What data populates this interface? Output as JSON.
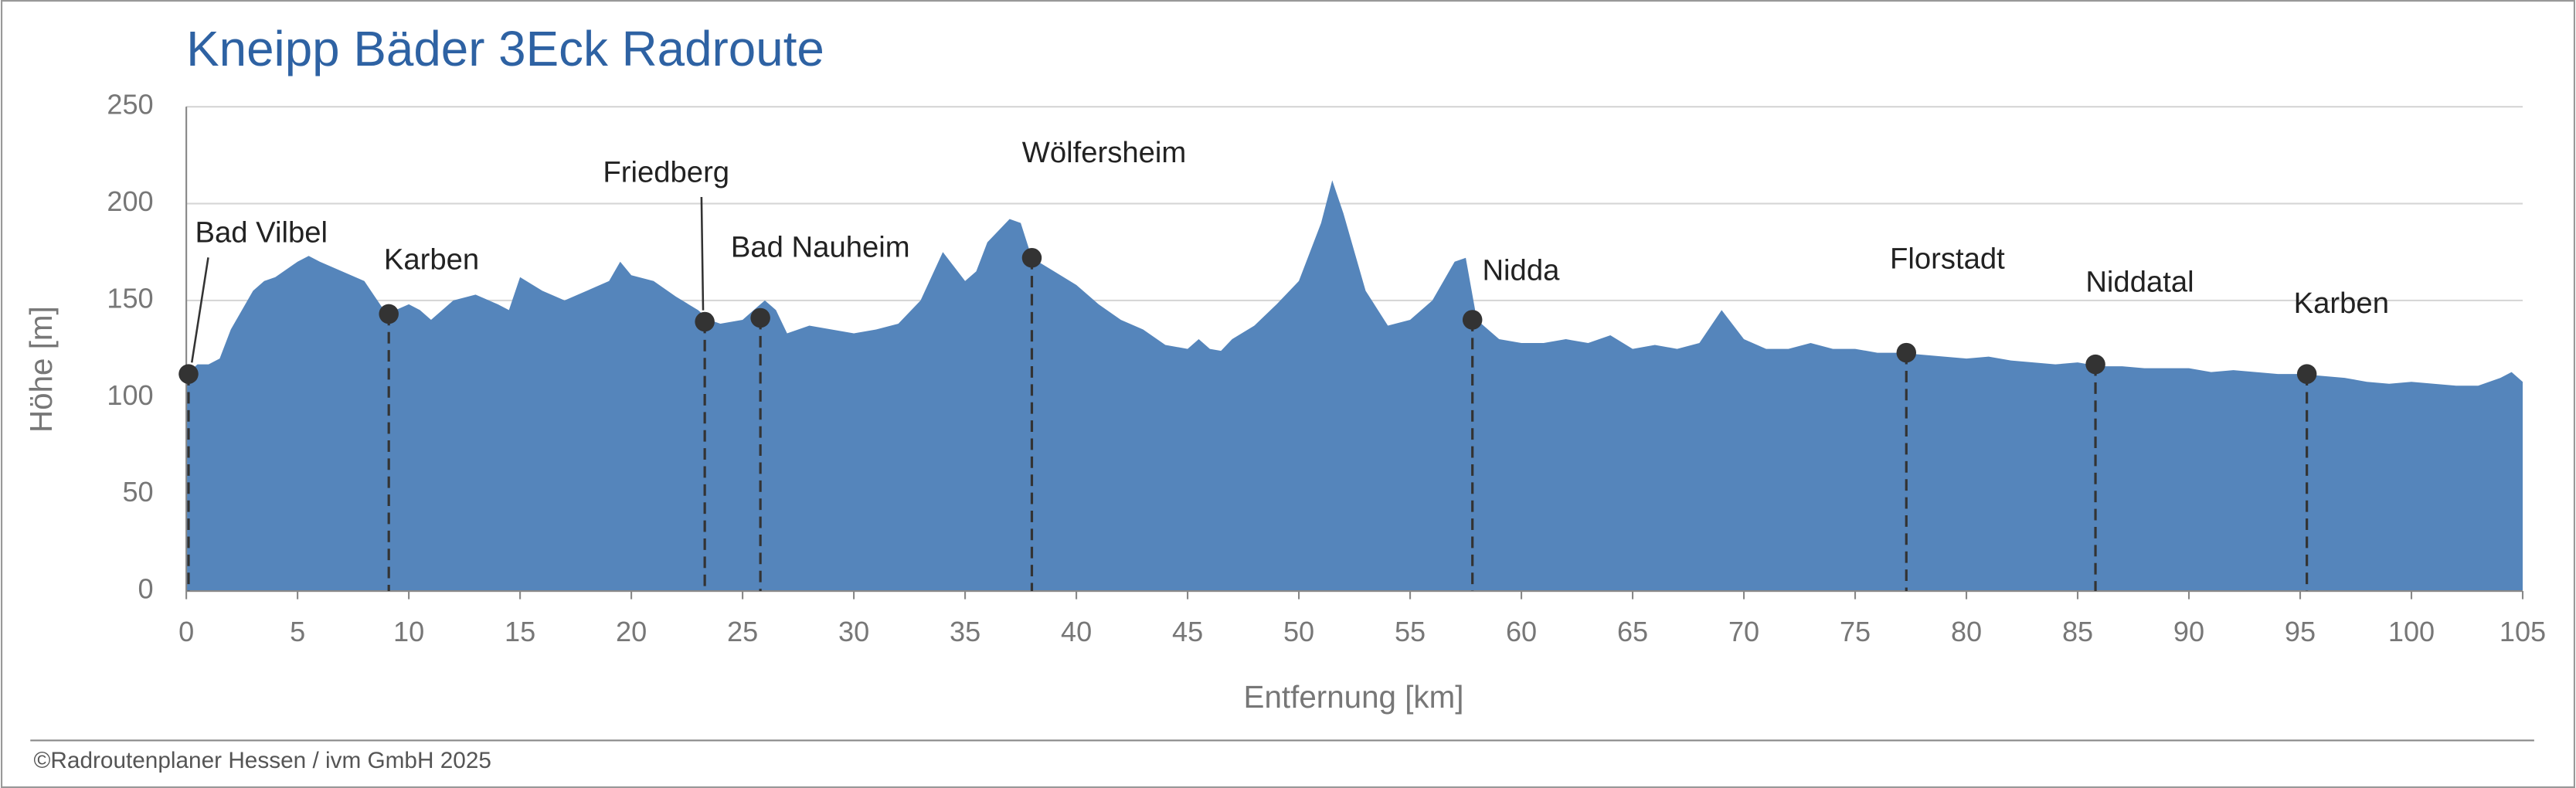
{
  "chart_data": {
    "type": "area",
    "title": "Kneipp Bäder 3Eck Radroute",
    "x_label": "Entfernung [km]",
    "y_label": "Höhe [m]",
    "source": "©Radroutenplaner Hessen / ivm GmbH 2025",
    "color": "#5585bb",
    "grid": true,
    "xlim": [
      0,
      105
    ],
    "ylim": [
      0,
      250
    ],
    "xticks": [
      0,
      5,
      10,
      15,
      20,
      25,
      30,
      35,
      40,
      45,
      50,
      55,
      60,
      65,
      70,
      75,
      80,
      85,
      90,
      95,
      100,
      105
    ],
    "yticks": [
      0,
      50,
      100,
      150,
      200,
      250
    ],
    "x": [
      0,
      0.5,
      1,
      1.5,
      2,
      3,
      3.5,
      4,
      5,
      5.5,
      6,
      7,
      8,
      9,
      10,
      10.5,
      11,
      12,
      13,
      14,
      14.5,
      15,
      16,
      17,
      18,
      19,
      19.5,
      20,
      21,
      22,
      23,
      23.5,
      24,
      25,
      25.5,
      26,
      26.5,
      27,
      28,
      29,
      30,
      31,
      32,
      33,
      34,
      35,
      35.5,
      36,
      37,
      37.5,
      38,
      39,
      40,
      41,
      42,
      43,
      44,
      45,
      45.5,
      46,
      46.5,
      47,
      48,
      49,
      50,
      51,
      51.5,
      52,
      52.5,
      53,
      54,
      55,
      56,
      57,
      57.5,
      58,
      59,
      60,
      61,
      62,
      63,
      64,
      65,
      66,
      67,
      68,
      69,
      70,
      71,
      72,
      73,
      74,
      75,
      76,
      77,
      78,
      79,
      80,
      81,
      82,
      83,
      84,
      85,
      86,
      87,
      88,
      89,
      90,
      91,
      92,
      93,
      94,
      95,
      96,
      97,
      98,
      99,
      100,
      101,
      102,
      103,
      104,
      104.5,
      105
    ],
    "values": [
      112,
      117,
      117,
      120,
      135,
      155,
      160,
      162,
      170,
      173,
      170,
      165,
      160,
      143,
      148,
      145,
      140,
      150,
      153,
      148,
      145,
      162,
      155,
      150,
      155,
      160,
      170,
      163,
      160,
      152,
      145,
      140,
      138,
      140,
      145,
      150,
      145,
      133,
      137,
      135,
      133,
      135,
      138,
      150,
      175,
      160,
      165,
      180,
      192,
      190,
      172,
      165,
      158,
      148,
      140,
      135,
      127,
      125,
      130,
      125,
      124,
      130,
      137,
      148,
      160,
      190,
      212,
      195,
      175,
      155,
      137,
      140,
      150,
      170,
      172,
      140,
      130,
      128,
      128,
      130,
      128,
      132,
      125,
      127,
      125,
      128,
      145,
      130,
      125,
      125,
      128,
      125,
      125,
      123,
      123,
      122,
      121,
      120,
      121,
      119,
      118,
      117,
      118,
      116,
      116,
      115,
      115,
      115,
      113,
      114,
      113,
      112,
      112,
      111,
      110,
      108,
      107,
      108,
      107,
      106,
      106,
      110,
      113,
      108
    ],
    "annotations": [
      {
        "label": "Bad Vilbel",
        "x": 0.1,
        "y": 112
      },
      {
        "label": "Karben",
        "x": 9.1,
        "y": 143
      },
      {
        "label": "Friedberg",
        "x": 23.3,
        "y": 139
      },
      {
        "label": "Bad Nauheim",
        "x": 25.8,
        "y": 141
      },
      {
        "label": "Wölfersheim",
        "x": 38,
        "y": 172
      },
      {
        "label": "Nidda",
        "x": 57.8,
        "y": 140
      },
      {
        "label": "Florstadt",
        "x": 77.3,
        "y": 123
      },
      {
        "label": "Niddatal",
        "x": 85.8,
        "y": 117
      },
      {
        "label": "Karben",
        "x": 95.3,
        "y": 112
      }
    ]
  }
}
